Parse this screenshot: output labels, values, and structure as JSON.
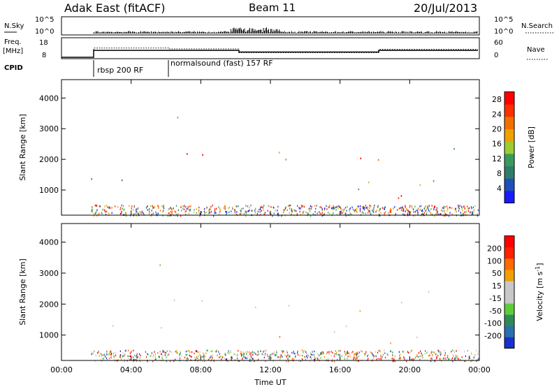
{
  "header": {
    "station": "Adak East (fitACF)",
    "beam": "Beam 11",
    "date": "20/Jul/2013"
  },
  "params": {
    "nsky_label": "N.Sky",
    "nsearch_label": "N.Search",
    "freq_label": "Freq.",
    "freq_unit": "[MHz]",
    "nave_label": "Nave",
    "cpid_label": "CPID",
    "left_ticks_top": [
      "10^5",
      "10^0"
    ],
    "right_ticks_top": [
      "10^5",
      "10^0"
    ],
    "freq_ticks": [
      "18",
      "8"
    ],
    "nave_ticks": [
      "60",
      "0"
    ],
    "cpid_segments": [
      "rbsp 200 RF",
      "normalsound (fast) 157 RF"
    ]
  },
  "colors": {
    "power_scale": [
      "#1a1aff",
      "#1f4fb8",
      "#2e7d6a",
      "#3a9a5a",
      "#9acd32",
      "#f0a000",
      "#f07000",
      "#ff3000",
      "#ff0000"
    ],
    "velocity_scale": [
      "#1a2fd0",
      "#2a6fb0",
      "#2e8b57",
      "#5ccc3a",
      "#c8c8c8",
      "#c8c8c8",
      "#f0a000",
      "#ff6a00",
      "#ff2000",
      "#ff0000"
    ]
  },
  "chart_data": [
    {
      "type": "heatmap",
      "title": "",
      "xlabel": "Time UT",
      "ylabel": "Slant Range [km]",
      "x_ticks": [
        "00:00",
        "04:00",
        "08:00",
        "12:00",
        "16:00",
        "20:00",
        "00:00"
      ],
      "y_ticks": [
        "1000",
        "2000",
        "3000",
        "4000"
      ],
      "xlim_hours": [
        0,
        24
      ],
      "ylim_km": [
        180,
        4600
      ],
      "colorbar": {
        "label": "Power [dB]",
        "ticks": [
          "4",
          "8",
          "12",
          "16",
          "20",
          "24",
          "28"
        ],
        "range": [
          0,
          30
        ]
      },
      "scatter_regions": [
        {
          "t0": 1.7,
          "t1": 10,
          "r0": 1200,
          "r1": 1400,
          "level": 0.3
        },
        {
          "t0": 1.7,
          "t1": 3.6,
          "r0": 1750,
          "r1": 1950,
          "level": 0.35
        },
        {
          "t0": 5.8,
          "t1": 10,
          "r0": 1900,
          "r1": 2300,
          "level": 0.85
        },
        {
          "t0": 10,
          "t1": 13.5,
          "r0": 1900,
          "r1": 2400,
          "level": 0.8
        },
        {
          "t0": 4.8,
          "t1": 7.5,
          "r0": 3250,
          "r1": 3550,
          "level": 0.55
        },
        {
          "t0": 13,
          "t1": 18,
          "r0": 1000,
          "r1": 1400,
          "level": 0.4
        },
        {
          "t0": 16,
          "t1": 18,
          "r0": 1600,
          "r1": 2100,
          "level": 0.8
        },
        {
          "t0": 18,
          "t1": 22,
          "r0": 700,
          "r1": 1100,
          "level": 0.85
        },
        {
          "t0": 18,
          "t1": 24,
          "r0": 1100,
          "r1": 1400,
          "level": 0.3
        },
        {
          "t0": 18,
          "t1": 21,
          "r0": 1900,
          "r1": 2300,
          "level": 0.75
        },
        {
          "t0": 21,
          "t1": 24,
          "r0": 2200,
          "r1": 2600,
          "level": 0.45
        }
      ]
    },
    {
      "type": "heatmap",
      "title": "",
      "xlabel": "Time UT",
      "ylabel": "Slant Range [km]",
      "x_ticks": [
        "00:00",
        "04:00",
        "08:00",
        "12:00",
        "16:00",
        "20:00",
        "00:00"
      ],
      "y_ticks": [
        "1000",
        "2000",
        "3000",
        "4000"
      ],
      "xlim_hours": [
        0,
        24
      ],
      "ylim_km": [
        180,
        4600
      ],
      "colorbar": {
        "label": "Velocity [m s-1]",
        "label_parts": [
          "Velocity [m s",
          "-1",
          "]"
        ],
        "ticks": [
          "200",
          "100",
          "50",
          "15",
          "-15",
          "-50",
          "-100",
          "-200"
        ],
        "range": [
          -250,
          250
        ]
      },
      "scatter_regions": [
        {
          "t0": 1.7,
          "t1": 10,
          "r0": 1200,
          "r1": 1400,
          "level": 0.5
        },
        {
          "t0": 5.8,
          "t1": 10,
          "r0": 1900,
          "r1": 2300,
          "level": 0.5
        },
        {
          "t0": 10,
          "t1": 13.5,
          "r0": 1900,
          "r1": 2400,
          "level": 0.45
        },
        {
          "t0": 4.8,
          "t1": 7.5,
          "r0": 3250,
          "r1": 3550,
          "level": 0.5
        },
        {
          "t0": 12.5,
          "t1": 14,
          "r0": 800,
          "r1": 1400,
          "level": 0.7
        },
        {
          "t0": 13,
          "t1": 18,
          "r0": 1000,
          "r1": 1400,
          "level": 0.5
        },
        {
          "t0": 16,
          "t1": 18,
          "r0": 1600,
          "r1": 2100,
          "level": 0.5
        },
        {
          "t0": 18,
          "t1": 22,
          "r0": 700,
          "r1": 1100,
          "level": 0.5
        },
        {
          "t0": 18,
          "t1": 21,
          "r0": 1900,
          "r1": 2300,
          "level": 0.5
        },
        {
          "t0": 21,
          "t1": 24,
          "r0": 2200,
          "r1": 2600,
          "level": 0.5
        }
      ]
    }
  ]
}
